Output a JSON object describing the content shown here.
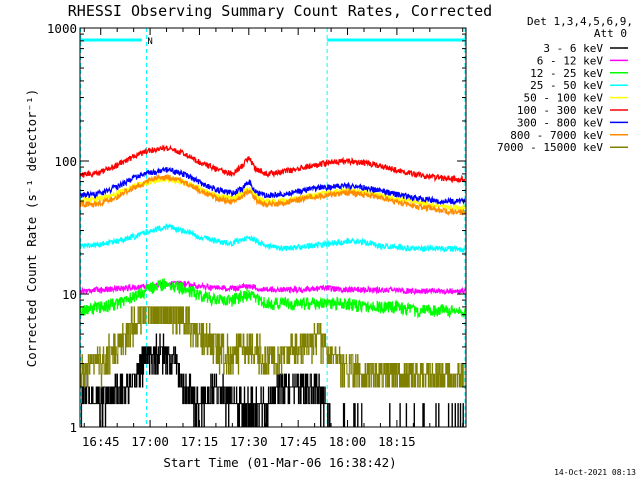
{
  "chart_data": {
    "type": "line",
    "title": "RHESSI Observing Summary Count Rates, Corrected",
    "xlabel": "Start Time (01-Mar-06 16:38:42)",
    "ylabel": "Corrected Count Rate (s⁻¹ detector⁻¹)",
    "y_scale": "log",
    "ylim": [
      1,
      1000
    ],
    "xlim_min": [
      38.7,
      156.0
    ],
    "x_tick_values_min": [
      45,
      60,
      75,
      90,
      105,
      120,
      135
    ],
    "x_tick_labels": [
      "16:45",
      "17:00",
      "17:15",
      "17:30",
      "17:45",
      "18:00",
      "18:15"
    ],
    "y_tick_values": [
      1,
      10,
      100,
      1000
    ],
    "y_tick_labels": [
      "1",
      "10",
      "100",
      "1000"
    ],
    "legend": {
      "header_1": "Det 1,3,4,5,6,9,",
      "header_2": "Att 0",
      "placement": "top-right, outside plot"
    },
    "intervals": {
      "night_markers_min": [
        38.9,
        58.9,
        113.8,
        155.7
      ],
      "bar_segments_min": [
        [
          38.9,
          57.5
        ],
        [
          113.8,
          155.7
        ]
      ],
      "label": "N",
      "label_min": 60.0
    },
    "series": [
      {
        "name": "3 - 6 keV",
        "color": "#000000",
        "x": [
          38.7,
          40,
          45,
          50,
          55,
          57,
          60,
          65,
          68,
          70,
          75,
          80,
          85,
          90,
          95,
          100,
          105,
          110,
          113,
          115,
          120,
          125,
          130,
          135,
          140,
          145,
          150,
          155.7
        ],
        "y": [
          1,
          2,
          1.5,
          2,
          2,
          3,
          3.5,
          3.5,
          3,
          2,
          1.5,
          2,
          1.5,
          1.5,
          1.5,
          2,
          2,
          2,
          1.5,
          1,
          1,
          1,
          1,
          1,
          1,
          1,
          1,
          1
        ]
      },
      {
        "name": "6 - 12 keV",
        "color": "#ff00ff",
        "x": [
          38.7,
          45,
          50,
          55,
          60,
          65,
          70,
          75,
          80,
          85,
          90,
          95,
          100,
          105,
          110,
          115,
          120,
          125,
          130,
          135,
          140,
          145,
          150,
          155.7
        ],
        "y": [
          10.5,
          10.8,
          11,
          11.2,
          11.5,
          12,
          12,
          11.5,
          11,
          11,
          11.5,
          10.8,
          10.8,
          10.8,
          11,
          11,
          10.8,
          10.8,
          10.7,
          10.7,
          10.5,
          10.5,
          10.5,
          10.5
        ]
      },
      {
        "name": "12 - 25 keV",
        "color": "#00ff00",
        "x": [
          38.7,
          45,
          50,
          55,
          60,
          65,
          70,
          75,
          80,
          85,
          90,
          95,
          100,
          105,
          110,
          115,
          120,
          125,
          130,
          135,
          140,
          145,
          150,
          155.7
        ],
        "y": [
          7.5,
          8,
          8.5,
          9.5,
          11,
          12,
          11,
          10,
          9,
          9,
          10,
          8.5,
          8.5,
          8.5,
          8.5,
          8.5,
          8.5,
          8,
          8,
          8,
          7.5,
          7.5,
          7.5,
          7.2
        ]
      },
      {
        "name": "25 - 50 keV",
        "color": "#00ffff",
        "x": [
          38.7,
          45,
          50,
          55,
          60,
          65,
          70,
          75,
          80,
          85,
          90,
          95,
          100,
          105,
          110,
          115,
          120,
          125,
          130,
          135,
          140,
          145,
          150,
          155.7
        ],
        "y": [
          23,
          23.5,
          25,
          27,
          30,
          32,
          30,
          27,
          25,
          24,
          27,
          23,
          22,
          22.5,
          23,
          24,
          25,
          24.5,
          23,
          22.5,
          22,
          22,
          22,
          21.5
        ]
      },
      {
        "name": "50 - 100 keV",
        "color": "#ffff00",
        "x": [
          38.7,
          45,
          50,
          55,
          60,
          65,
          70,
          75,
          80,
          85,
          88,
          90,
          92,
          95,
          100,
          105,
          110,
          115,
          120,
          125,
          130,
          135,
          140,
          145,
          150,
          155.7
        ],
        "y": [
          50,
          52,
          57,
          64,
          70,
          73,
          70,
          62,
          55,
          52,
          57,
          62,
          54,
          50,
          50,
          52,
          55,
          58,
          60,
          58,
          55,
          52,
          50,
          47,
          45,
          44
        ]
      },
      {
        "name": "100 - 300 keV",
        "color": "#ff0000",
        "x": [
          38.7,
          45,
          50,
          55,
          60,
          65,
          70,
          75,
          80,
          85,
          88,
          90,
          92,
          95,
          100,
          105,
          110,
          115,
          120,
          125,
          130,
          135,
          140,
          145,
          150,
          155.7
        ],
        "y": [
          78,
          82,
          93,
          108,
          120,
          125,
          115,
          98,
          87,
          80,
          92,
          105,
          88,
          80,
          82,
          88,
          93,
          98,
          100,
          97,
          92,
          85,
          80,
          76,
          74,
          73
        ]
      },
      {
        "name": "300 - 800 keV",
        "color": "#0000ff",
        "x": [
          38.7,
          45,
          50,
          55,
          60,
          65,
          70,
          75,
          80,
          85,
          88,
          90,
          92,
          95,
          100,
          105,
          110,
          115,
          120,
          125,
          130,
          135,
          140,
          145,
          150,
          155.7
        ],
        "y": [
          55,
          57,
          64,
          74,
          82,
          86,
          80,
          69,
          61,
          57,
          62,
          70,
          59,
          55,
          56,
          59,
          62,
          64,
          65,
          63,
          60,
          56,
          53,
          51,
          50,
          50
        ]
      },
      {
        "name": "800 - 7000 keV",
        "color": "#ff8c00",
        "x": [
          38.7,
          45,
          50,
          55,
          60,
          65,
          70,
          75,
          80,
          85,
          88,
          90,
          92,
          95,
          100,
          105,
          110,
          115,
          120,
          125,
          130,
          135,
          140,
          145,
          150,
          155.7
        ],
        "y": [
          47,
          48,
          54,
          63,
          72,
          76,
          70,
          60,
          53,
          49,
          54,
          60,
          51,
          47,
          48,
          51,
          54,
          56,
          58,
          56,
          53,
          49,
          46,
          44,
          42,
          41
        ]
      },
      {
        "name": "7000 - 15000 keV",
        "color": "#808000",
        "x": [
          38.7,
          45,
          50,
          55,
          60,
          65,
          70,
          75,
          80,
          85,
          90,
          95,
          100,
          105,
          110,
          112,
          115,
          120,
          125,
          130,
          135,
          140,
          145,
          150,
          155.7
        ],
        "y": [
          2.5,
          3,
          4,
          6,
          8,
          8,
          7,
          5,
          4,
          3.5,
          4,
          3.5,
          3.5,
          4,
          4.5,
          4.5,
          3.5,
          2.8,
          2.5,
          2.5,
          2.5,
          2.5,
          2.5,
          2.5,
          2.5
        ]
      }
    ]
  },
  "footer": {
    "date_stamp": "14-Oct-2021 08:13"
  },
  "colors": {
    "frame": "#000000",
    "interval_markers": "#00ffff"
  }
}
